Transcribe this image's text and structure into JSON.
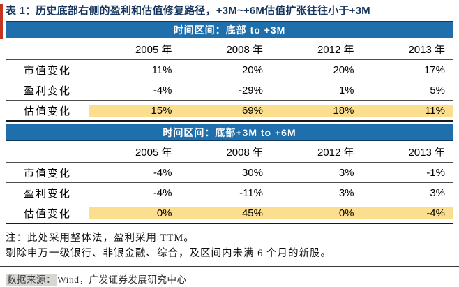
{
  "title": "表 1：历史底部右侧的盈利和估值修复路径，+3M~+6M估值扩张往往小于+3M",
  "colors": {
    "band_blue": "#1e6fac",
    "highlight_yellow": "#fbdf8e",
    "accent_red": "#c53622",
    "title_navy": "#17365d"
  },
  "tables": [
    {
      "band_label": "时间区间：底部 to +3M",
      "columns": [
        "2005 年",
        "2008 年",
        "2012 年",
        "2013 年"
      ],
      "rows": [
        {
          "label": "市值变化",
          "values": [
            "11%",
            "20%",
            "20%",
            "17%"
          ],
          "highlight": false
        },
        {
          "label": "盈利变化",
          "values": [
            "-4%",
            "-29%",
            "1%",
            "5%"
          ],
          "highlight": false
        },
        {
          "label": "估值变化",
          "values": [
            "15%",
            "69%",
            "18%",
            "11%"
          ],
          "highlight": true
        }
      ]
    },
    {
      "band_label": "时间区间：底部+3M to +6M",
      "columns": [
        "2005 年",
        "2008 年",
        "2012 年",
        "2013 年"
      ],
      "rows": [
        {
          "label": "市值变化",
          "values": [
            "-4%",
            "30%",
            "3%",
            "-1%"
          ],
          "highlight": false
        },
        {
          "label": "盈利变化",
          "values": [
            "-4%",
            "-11%",
            "3%",
            "3%"
          ],
          "highlight": false
        },
        {
          "label": "估值变化",
          "values": [
            "0%",
            "45%",
            "0%",
            "-4%"
          ],
          "highlight": true
        }
      ]
    }
  ],
  "notes": [
    "注：此处采用整体法，盈利采用 TTM。",
    "剔除申万一级银行、非银金融、综合，及区间内未满 6 个月的新股。"
  ],
  "source": {
    "label": "数据来源：",
    "text": "Wind，广发证券发展研究中心"
  }
}
